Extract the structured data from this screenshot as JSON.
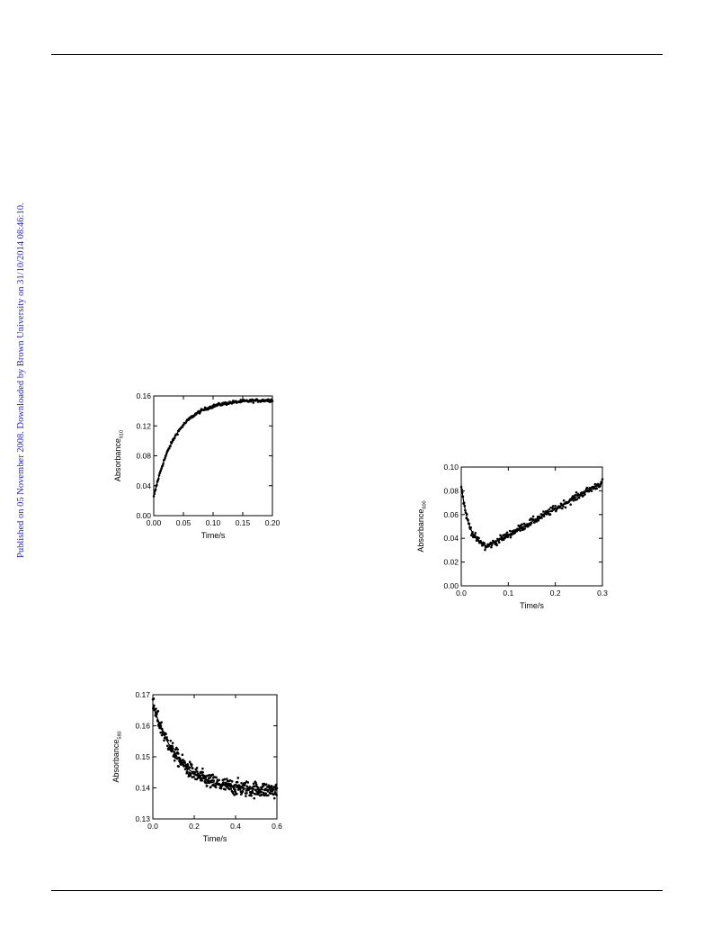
{
  "side_note": "Published on 05 November 2008. Downloaded by Brown University on 31/10/2014 08:46:10.",
  "colors": {
    "rule": "#000000",
    "side_note": "#1a1aff",
    "points": "#000000",
    "fit": "#000000"
  },
  "chart_data": [
    {
      "id": "chart1",
      "type": "scatter",
      "xlabel": "Time/s",
      "ylabel_main": "Absorbance",
      "ylabel_sub": "610",
      "xlim": [
        0,
        0.2
      ],
      "ylim": [
        0,
        0.16
      ],
      "xticks": [
        "0.00",
        "0.05",
        "0.10",
        "0.15",
        "0.20"
      ],
      "yticks": [
        "0.00",
        "0.04",
        "0.08",
        "0.12",
        "0.16"
      ],
      "fit": "single-exponential rise",
      "fit_params": {
        "a0": 0.025,
        "amax": 0.155,
        "k": 27
      },
      "points": 200,
      "noise": 0.002
    },
    {
      "id": "chart2",
      "type": "scatter",
      "xlabel": "Time/s",
      "ylabel_main": "Absorbance",
      "ylabel_sub": "600",
      "xlim": [
        0,
        0.3
      ],
      "ylim": [
        0,
        0.1
      ],
      "xticks": [
        "0.0",
        "0.1",
        "0.2",
        "0.3"
      ],
      "yticks": [
        "0.00",
        "0.02",
        "0.04",
        "0.06",
        "0.08",
        "0.10"
      ],
      "fit": "fast decay followed by slow rise",
      "fit_params": {
        "a0": 0.085,
        "amin": 0.032,
        "tmin": 0.05,
        "aend": 0.087,
        "tend": 0.3
      },
      "points": 250,
      "noise": 0.003
    },
    {
      "id": "chart3",
      "type": "scatter",
      "xlabel": "Time/s",
      "ylabel_main": "Absorbance",
      "ylabel_sub": "580",
      "xlim": [
        0,
        0.6
      ],
      "ylim": [
        0.13,
        0.17
      ],
      "xticks": [
        "0.0",
        "0.2",
        "0.4",
        "0.6"
      ],
      "yticks": [
        "0.13",
        "0.14",
        "0.15",
        "0.16",
        "0.17"
      ],
      "fit": "single-exponential decay",
      "fit_params": {
        "a0": 0.167,
        "ainf": 0.139,
        "k": 8
      },
      "points": 400,
      "noise": 0.0025
    }
  ]
}
